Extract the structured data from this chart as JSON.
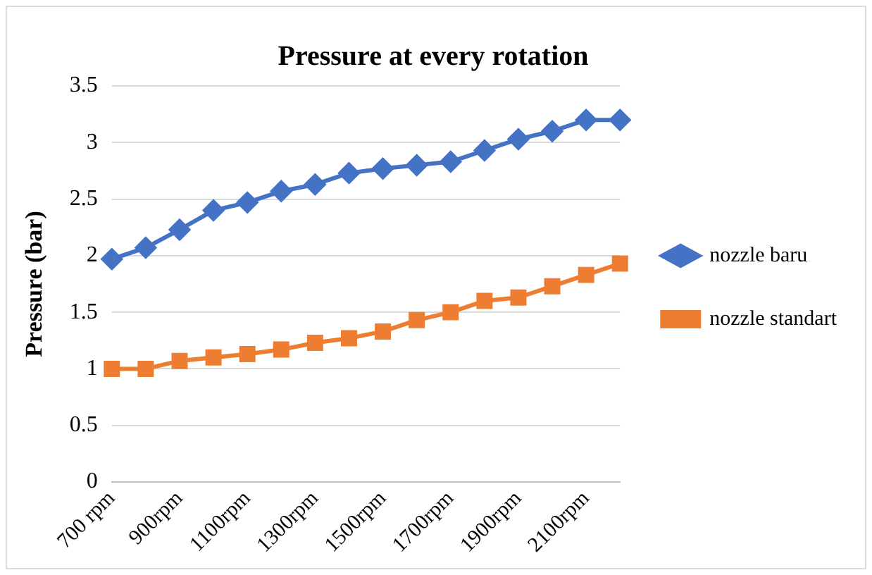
{
  "chart_data": {
    "type": "line",
    "title": "Pressure at every rotation",
    "ylabel": "Pressure (bar)",
    "categories": [
      "700 rpm",
      null,
      "900rpm",
      null,
      "1100rpm",
      null,
      "1300rpm",
      null,
      "1500rpm",
      null,
      "1700rpm",
      null,
      "1900rpm",
      null,
      "2100rpm",
      null
    ],
    "series": [
      {
        "name": "nozzle baru",
        "color": "#4472c4",
        "marker": "diamond",
        "values": [
          1.97,
          2.07,
          2.23,
          2.4,
          2.47,
          2.57,
          2.63,
          2.73,
          2.77,
          2.8,
          2.83,
          2.93,
          3.03,
          3.1,
          3.2,
          3.2
        ]
      },
      {
        "name": "nozzle standart",
        "color": "#ed7d31",
        "marker": "square",
        "values": [
          1.0,
          1.0,
          1.07,
          1.1,
          1.13,
          1.17,
          1.23,
          1.27,
          1.33,
          1.43,
          1.5,
          1.6,
          1.63,
          1.73,
          1.83,
          1.93
        ]
      }
    ],
    "ylim": [
      0,
      3.5
    ],
    "yticks": [
      0,
      0.5,
      1,
      1.5,
      2,
      2.5,
      3,
      3.5
    ],
    "grid": "y",
    "legend": "right"
  }
}
